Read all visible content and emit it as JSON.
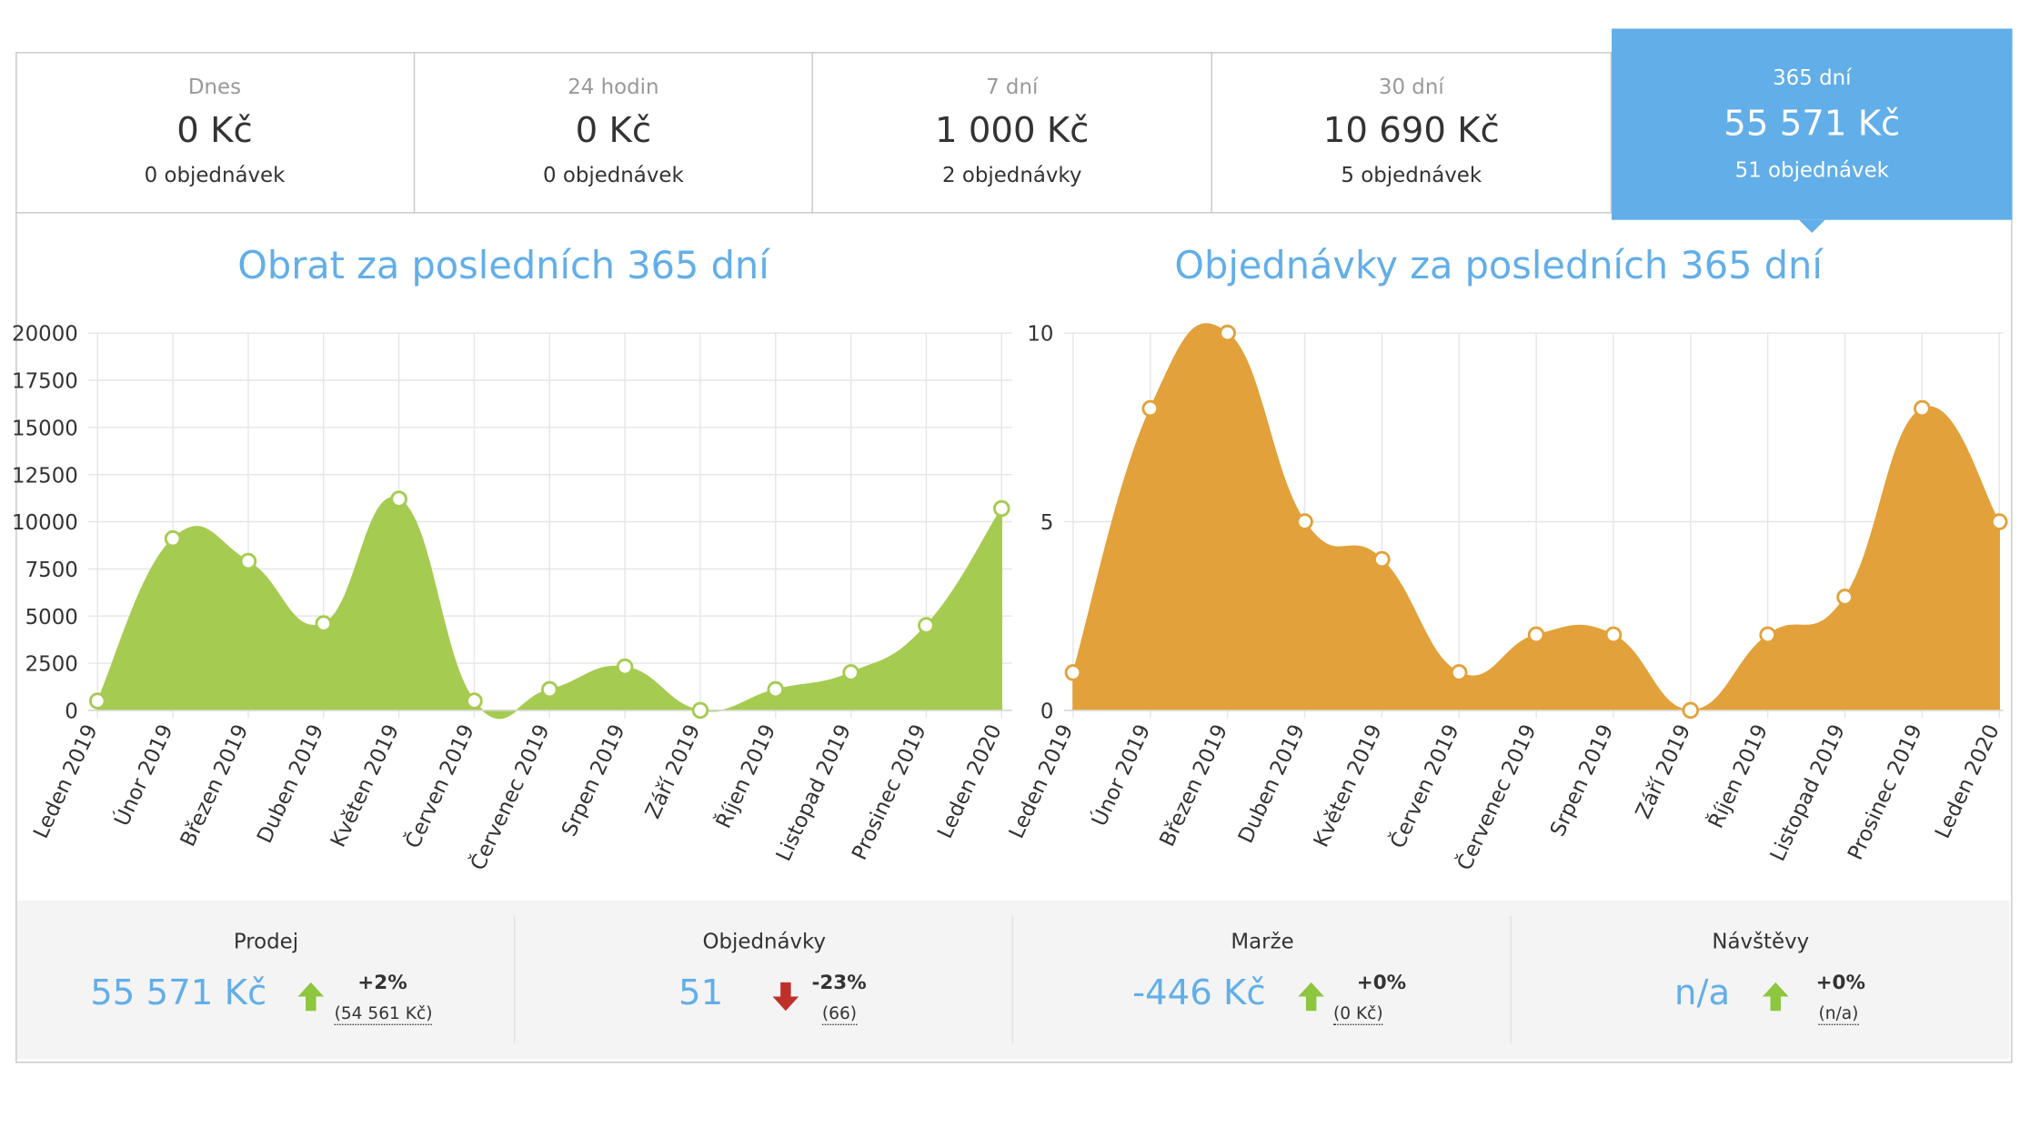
{
  "tabs": [
    {
      "label": "Dnes",
      "value": "0 Kč",
      "count": "0 objednávek"
    },
    {
      "label": "24 hodin",
      "value": "0 Kč",
      "count": "0 objednávek"
    },
    {
      "label": "7 dní",
      "value": "1 000 Kč",
      "count": "2 objednávky"
    },
    {
      "label": "30 dní",
      "value": "10 690 Kč",
      "count": "5 objednávek"
    },
    {
      "label": "365 dní",
      "value": "55 571 Kč",
      "count": "51 objednávek",
      "active": true
    }
  ],
  "colors": {
    "accent": "#62aee8",
    "revenue": "#a5cb50",
    "orders": "#e2a13a",
    "up": "#8dc63f",
    "down": "#c0302b"
  },
  "chart_data": [
    {
      "type": "area",
      "title": "Obrat za posledních 365 dní",
      "categories": [
        "Leden 2019",
        "Únor 2019",
        "Březen 2019",
        "Duben 2019",
        "Květen 2019",
        "Červen 2019",
        "Červenec 2019",
        "Srpen 2019",
        "Září 2019",
        "Říjen 2019",
        "Listopad 2019",
        "Prosinec 2019",
        "Leden 2020"
      ],
      "values": [
        500,
        9100,
        7900,
        4600,
        11200,
        500,
        1100,
        2300,
        0,
        1100,
        2000,
        4500,
        10700
      ],
      "ylim": [
        0,
        20000
      ],
      "yticks": [
        0,
        2500,
        5000,
        7500,
        10000,
        12500,
        15000,
        17500,
        20000
      ],
      "grid": true
    },
    {
      "type": "area",
      "title": "Objednávky za posledních 365 dní",
      "categories": [
        "Leden 2019",
        "Únor 2019",
        "Březen 2019",
        "Duben 2019",
        "Květen 2019",
        "Červen 2019",
        "Červenec 2019",
        "Srpen 2019",
        "Září 2019",
        "Říjen 2019",
        "Listopad 2019",
        "Prosinec 2019",
        "Leden 2020"
      ],
      "values": [
        1,
        8,
        10,
        5,
        4,
        1,
        2,
        2,
        0,
        2,
        3,
        8,
        5
      ],
      "ylim": [
        0,
        10
      ],
      "yticks": [
        0,
        5,
        10
      ],
      "grid": true
    }
  ],
  "stats": [
    {
      "label": "Prodej",
      "value": "55 571 Kč",
      "direction": "up",
      "change": "+2%",
      "prev": "(54 561 Kč)"
    },
    {
      "label": "Objednávky",
      "value": "51",
      "direction": "down",
      "change": "-23%",
      "prev": "(66)"
    },
    {
      "label": "Marže",
      "value": "-446 Kč",
      "direction": "up",
      "change": "+0%",
      "prev": "(0 Kč)"
    },
    {
      "label": "Návštěvy",
      "value": "n/a",
      "direction": "up",
      "change": "+0%",
      "prev": "(n/a)"
    }
  ]
}
